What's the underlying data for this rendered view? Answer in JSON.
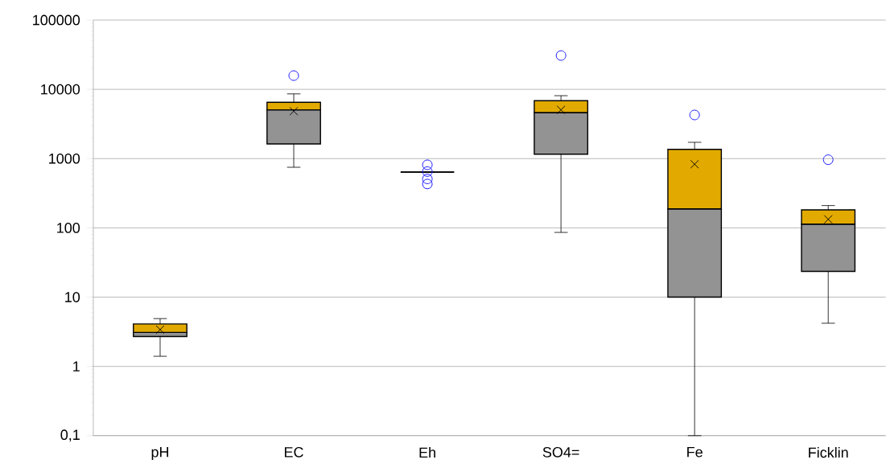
{
  "chart_data": {
    "type": "box",
    "categories": [
      "pH",
      "EC",
      "Eh",
      "SO4=",
      "Fe",
      "Ficklin"
    ],
    "colors": [
      [
        "#939393",
        "#e2aa00"
      ],
      [
        "#939393",
        "#e2aa00"
      ],
      [
        "#939393",
        "#e2aa00"
      ],
      [
        "#939393",
        "#e2aa00"
      ],
      [
        "#939393",
        "#e2aa00"
      ],
      [
        "#939393",
        "#e2aa00"
      ]
    ],
    "boxes": [
      {
        "low": 1.4,
        "q1": 2.7,
        "median": 3.1,
        "q3": 4.1,
        "high": 4.9,
        "mean": 3.4
      },
      {
        "low": 750,
        "q1": 1630,
        "median": 5060,
        "q3": 6500,
        "high": 8600,
        "mean": 4840,
        "outliers": [
          15800
        ]
      },
      {
        "low": 640,
        "q1": 640,
        "median": 640,
        "q3": 640,
        "high": 640,
        "outliers": [
          815,
          650,
          510,
          430
        ]
      },
      {
        "low": 86,
        "q1": 1160,
        "median": 4630,
        "q3": 6860,
        "high": 8100,
        "mean": 5060,
        "outliers": [
          30800
        ]
      },
      {
        "low": 0.1,
        "q1": 10,
        "median": 188,
        "q3": 1360,
        "high": 1720,
        "mean": 830,
        "outliers": [
          4270
        ]
      },
      {
        "low": 4.2,
        "q1": 23.5,
        "median": 113,
        "q3": 182,
        "high": 210,
        "mean": 133,
        "outliers": [
          964
        ]
      }
    ],
    "ylim": [
      0.1,
      100000
    ],
    "yticks": [
      {
        "value": 0.1,
        "label": "0,1"
      },
      1,
      10,
      100,
      1000,
      10000,
      100000
    ],
    "log": "y",
    "grid": "y"
  }
}
